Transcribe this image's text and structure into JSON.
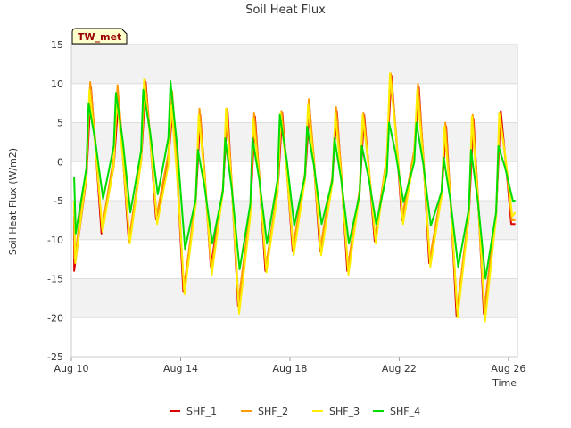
{
  "chart_data": {
    "type": "line",
    "title": "Soil Heat Flux",
    "xlabel": "Time",
    "ylabel": "Soil Heat Flux (W/m2)",
    "badge": "TW_met",
    "xlim": [
      0,
      16.33
    ],
    "ylim": [
      -25,
      15
    ],
    "yticks": [
      -25,
      -20,
      -15,
      -10,
      -5,
      0,
      5,
      10,
      15
    ],
    "xticks": [
      {
        "label": "Aug 10",
        "day": 0
      },
      {
        "label": "Aug 14",
        "day": 4
      },
      {
        "label": "Aug 18",
        "day": 8
      },
      {
        "label": "Aug 22",
        "day": 12
      },
      {
        "label": "Aug 26",
        "day": 16
      }
    ],
    "days": [
      0.25,
      0.75,
      1.25,
      1.75,
      2.25,
      2.75,
      3.25,
      3.75,
      4.25,
      4.75,
      5.25,
      5.75,
      6.25,
      6.75,
      7.25,
      7.75,
      8.25,
      8.75,
      9.25,
      9.75,
      10.25,
      10.75,
      11.25,
      11.75,
      12.25,
      12.75,
      13.25,
      13.75,
      14.25,
      14.75,
      15.25,
      15.75,
      16.25
    ],
    "series": [
      {
        "name": "SHF_1",
        "color": "#dd0000",
        "start": -7,
        "end": -8,
        "mins": [
          -14,
          -9.2,
          -10.2,
          -7.4,
          -16.7,
          -13.5,
          -18.5,
          -14,
          -11.5,
          -11.5,
          -14,
          -10.2,
          -7.5,
          -13,
          -19.8,
          -19.5,
          -8
        ],
        "maxs": [
          9.5,
          8,
          10.2,
          7.5,
          6,
          6.5,
          5.8,
          6.2,
          7,
          6.5,
          6,
          11,
          9.5,
          4.5,
          5.5,
          6.5,
          5.5
        ]
      },
      {
        "name": "SHF_2",
        "color": "#ff9900",
        "start": -6,
        "end": -7.5,
        "mins": [
          -12.5,
          -8.6,
          -9.8,
          -7,
          -16.4,
          -13.8,
          -18,
          -13.5,
          -11,
          -11,
          -13.5,
          -9.8,
          -7,
          -12.5,
          -19,
          -19,
          -7.5
        ],
        "maxs": [
          10.2,
          9.8,
          10.5,
          9,
          6.8,
          6.8,
          6.2,
          6.5,
          8,
          7,
          6.2,
          11.3,
          10,
          5,
          6,
          6,
          6
        ]
      },
      {
        "name": "SHF_3",
        "color": "#ffee00",
        "start": -5,
        "end": -6.5,
        "mins": [
          -13,
          -9,
          -10.5,
          -8,
          -17,
          -14.5,
          -19.5,
          -14.2,
          -12,
          -12,
          -14.5,
          -10.5,
          -8,
          -13.5,
          -20,
          -20.5,
          -7
        ]
      },
      {
        "name": "SHF_4",
        "color": "#00dd00",
        "start": -2,
        "end": -5,
        "mins": [
          -9.2,
          -4.8,
          -6.5,
          -4.2,
          -11.2,
          -10.5,
          -13.8,
          -10.5,
          -8.2,
          -8,
          -10.5,
          -8,
          -5.2,
          -8.2,
          -13.5,
          -15,
          -5
        ],
        "maxs": [
          7.5,
          8.8,
          9.2,
          10.3,
          1.5,
          3,
          3,
          6,
          4.5,
          3,
          2,
          5,
          5,
          0.5,
          1.5,
          2,
          2
        ]
      }
    ]
  }
}
